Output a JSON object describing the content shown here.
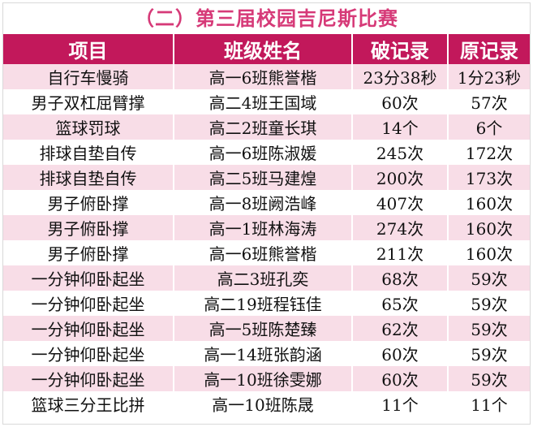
{
  "title": "（二）第三届校园吉尼斯比赛",
  "headers": [
    "项目",
    "班级姓名",
    "破记录",
    "原记录"
  ],
  "rows": [
    [
      "自行车慢骑",
      "高一6班熊誉楷",
      "23分38秒",
      "1分23秒"
    ],
    [
      "男子双杠屈臂撑",
      "高二4班王国域",
      "60次",
      "57次"
    ],
    [
      "篮球罚球",
      "高二2班童长琪",
      "14个",
      "6个"
    ],
    [
      "排球自垫自传",
      "高一6班陈淑媛",
      "245次",
      "172次"
    ],
    [
      "排球自垫自传",
      "高二5班马建煌",
      "200次",
      "173次"
    ],
    [
      "男子俯卧撑",
      "高一8班阙浩峰",
      "407次",
      "160次"
    ],
    [
      "男子俯卧撑",
      "高一1班林海涛",
      "274次",
      "160次"
    ],
    [
      "男子俯卧撑",
      "高一6班熊誉楷",
      "211次",
      "160次"
    ],
    [
      "一分钟仰卧起坐",
      "高二3班孔奕",
      "68次",
      "59次"
    ],
    [
      "一分钟仰卧起坐",
      "高二19班程钰佳",
      "65次",
      "59次"
    ],
    [
      "一分钟仰卧起坐",
      "高一5班陈楚臻",
      "62次",
      "59次"
    ],
    [
      "一分钟仰卧起坐",
      "高一14班张韵涵",
      "60次",
      "59次"
    ],
    [
      "一分钟仰卧起坐",
      "高一10班徐雯娜",
      "60次",
      "59次"
    ],
    [
      "篮球三分王比拼",
      "高一10班陈晟",
      "11个",
      "11个"
    ]
  ],
  "colors": {
    "title": "#d63a78",
    "header_bg": "#c2185b",
    "stripe": "#f8dde7"
  }
}
